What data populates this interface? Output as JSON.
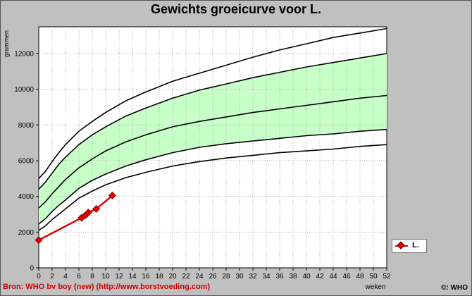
{
  "chart_data": {
    "type": "line",
    "title": "Gewichts groeicurve voor L.",
    "xlabel": "weken",
    "ylabel": "grammen",
    "xlim": [
      0,
      52
    ],
    "ylim": [
      0,
      13500
    ],
    "x_ticks": [
      0,
      2,
      4,
      6,
      8,
      10,
      12,
      14,
      16,
      18,
      20,
      22,
      24,
      26,
      28,
      30,
      32,
      34,
      36,
      38,
      40,
      42,
      44,
      46,
      48,
      50,
      52
    ],
    "y_ticks": [
      0,
      2000,
      4000,
      6000,
      8000,
      10000,
      12000
    ],
    "grid": true,
    "percentile_x": [
      0,
      1,
      2,
      3,
      4,
      6,
      8,
      10,
      13,
      16,
      20,
      24,
      28,
      32,
      36,
      40,
      44,
      48,
      52
    ],
    "percentile_curves": [
      {
        "values": [
          2100,
          2350,
          2700,
          3000,
          3300,
          3900,
          4300,
          4650,
          5050,
          5350,
          5700,
          5950,
          6150,
          6300,
          6450,
          6550,
          6650,
          6800,
          6900
        ]
      },
      {
        "values": [
          2450,
          2750,
          3150,
          3500,
          3800,
          4450,
          4900,
          5250,
          5700,
          6050,
          6450,
          6750,
          6950,
          7100,
          7250,
          7400,
          7500,
          7650,
          7750
        ]
      },
      {
        "values": [
          3350,
          3700,
          4150,
          4550,
          4950,
          5600,
          6100,
          6550,
          7050,
          7450,
          7900,
          8200,
          8450,
          8700,
          8900,
          9100,
          9300,
          9500,
          9650
        ]
      },
      {
        "values": [
          4400,
          4800,
          5300,
          5800,
          6200,
          6900,
          7450,
          7900,
          8500,
          8950,
          9500,
          9950,
          10300,
          10650,
          10950,
          11250,
          11500,
          11750,
          12000
        ]
      },
      {
        "values": [
          5000,
          5400,
          5950,
          6450,
          6900,
          7650,
          8200,
          8700,
          9350,
          9850,
          10450,
          10900,
          11350,
          11800,
          12200,
          12550,
          12900,
          13150,
          13400
        ]
      }
    ],
    "band": {
      "lower_curve": 1,
      "upper_curve": 3,
      "color": "#c8ffc8"
    },
    "series": [
      {
        "name": "L.",
        "color": "#e00000",
        "x": [
          0,
          6.4,
          7,
          7.4,
          8.6,
          11
        ],
        "values": [
          1550,
          2800,
          2950,
          3100,
          3300,
          4050
        ]
      }
    ],
    "legend_position": "right"
  },
  "source_text": "Bron: WHO bv boy (new) (http://www.borstvoeding.com)",
  "copyright_text": "©: WHO",
  "legend_label": "L."
}
